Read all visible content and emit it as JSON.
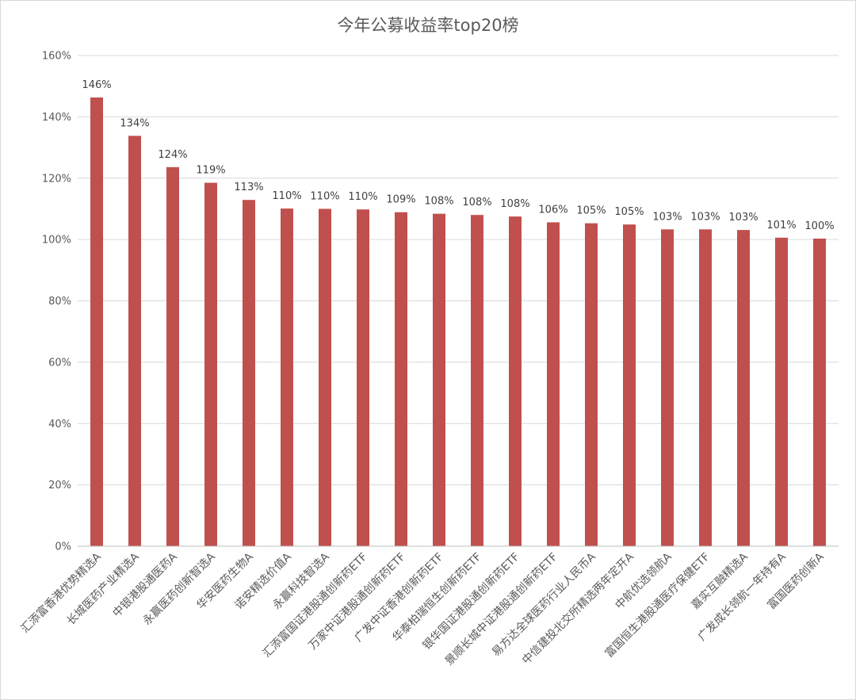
{
  "chart_data": {
    "type": "bar",
    "title": "今年公募收益率top20榜",
    "xlabel": "",
    "ylabel": "",
    "ylim": [
      0,
      160
    ],
    "y_ticks": [
      0,
      20,
      40,
      60,
      80,
      100,
      120,
      140,
      160
    ],
    "y_tick_suffix": "%",
    "grid": true,
    "legend": "none",
    "bar_color": "#c0504d",
    "categories": [
      "汇添富香港优势精选A",
      "长城医药产业精选A",
      "中银港股通医药A",
      "永赢医药创新智选A",
      "华安医药生物A",
      "诺安精选价值A",
      "永赢科技智选A",
      "汇添富国证港股通创新药ETF",
      "万家中证港股通创新药ETF",
      "广发中证香港创新药ETF",
      "华泰柏瑞恒生创新药ETF",
      "银华国证港股通创新药ETF",
      "景顺长城中证港股通创新药ETF",
      "易方达全球医药行业人民币A",
      "中信建投北交所精选两年定开A",
      "中航优选领航A",
      "富国恒生港股通医疗保健ETF",
      "嘉实互融精选A",
      "广发成长领航一年持有A",
      "富国医药创新A"
    ],
    "values": [
      146.3,
      133.8,
      123.6,
      118.5,
      112.9,
      110.1,
      110.0,
      109.8,
      108.9,
      108.4,
      108.0,
      107.5,
      105.6,
      105.3,
      104.9,
      103.3,
      103.3,
      103.1,
      100.6,
      100.3
    ],
    "data_labels": [
      "146%",
      "134%",
      "124%",
      "119%",
      "113%",
      "110%",
      "110%",
      "110%",
      "109%",
      "108%",
      "108%",
      "108%",
      "106%",
      "105%",
      "105%",
      "103%",
      "103%",
      "103%",
      "101%",
      "100%"
    ]
  }
}
